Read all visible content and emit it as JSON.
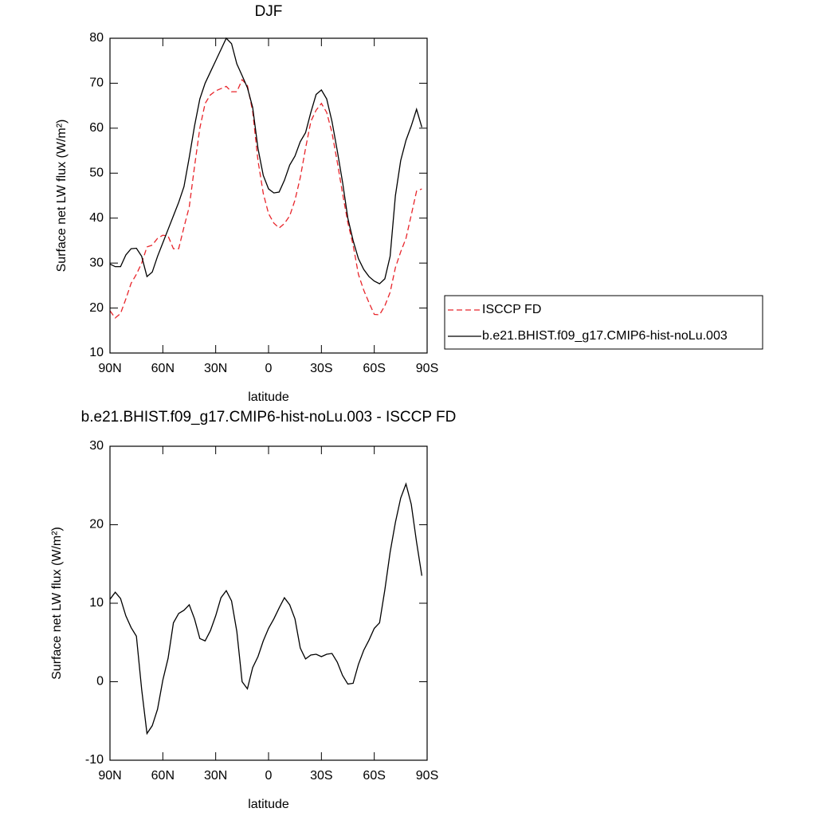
{
  "chart_data": [
    {
      "type": "line",
      "title": "DJF",
      "xlabel": "latitude",
      "ylabel": "Surface net LW flux (W/m²)",
      "x": [
        90,
        87,
        84,
        81,
        78,
        75,
        72,
        69,
        66,
        63,
        60,
        57,
        54,
        51,
        48,
        45,
        42,
        39,
        36,
        33,
        30,
        27,
        24,
        21,
        18,
        15,
        12,
        9,
        6,
        3,
        0,
        -3,
        -6,
        -9,
        -12,
        -15,
        -18,
        -21,
        -24,
        -27,
        -30,
        -33,
        -36,
        -39,
        -42,
        -45,
        -48,
        -51,
        -54,
        -57,
        -60,
        -63,
        -66,
        -69,
        -72,
        -75,
        -78,
        -81,
        -84,
        -87
      ],
      "series": [
        {
          "name": "ISCCP FD",
          "color": "#e8242a",
          "dash": "dashed",
          "values": [
            19.4,
            17.8,
            18.8,
            22,
            25.5,
            27.5,
            30,
            33.6,
            34,
            35.5,
            36.2,
            36,
            33.2,
            33.2,
            38,
            42.5,
            51.5,
            60,
            65.5,
            67.4,
            68.3,
            68.8,
            69.3,
            68.1,
            68.1,
            70.8,
            69.5,
            63.7,
            52.8,
            45.5,
            41,
            38.9,
            37.8,
            38.8,
            40.5,
            44,
            49,
            55.5,
            61.5,
            64,
            65.5,
            63.5,
            59,
            52.5,
            45.5,
            39,
            34,
            27.5,
            24,
            21.2,
            18.6,
            18.5,
            20.5,
            23.5,
            29,
            32.5,
            35.5,
            40.7,
            46,
            46.5
          ]
        },
        {
          "name": "b.e21.BHIST.f09_g17.CMIP6-hist-noLu.003",
          "color": "#000000",
          "dash": "solid",
          "values": [
            29.8,
            29.2,
            29.2,
            31.8,
            33.2,
            33.3,
            31.5,
            27,
            28,
            31.5,
            34.5,
            37.5,
            40.5,
            43.5,
            47,
            53.5,
            60.5,
            66.5,
            70,
            72.5,
            75,
            77.5,
            80,
            78.8,
            74.3,
            71.7,
            69,
            64.6,
            55.5,
            49.5,
            46.5,
            45.6,
            45.8,
            48.4,
            51.8,
            53.8,
            57,
            59,
            63.5,
            67.5,
            68.5,
            66.5,
            61.5,
            55,
            48,
            40,
            35,
            31,
            28.6,
            27,
            26,
            25.4,
            26.5,
            31.5,
            45,
            52.8,
            57.3,
            60.5,
            64.2,
            60.2
          ]
        }
      ],
      "xlim": [
        90,
        -90
      ],
      "xticks": [
        {
          "value": 90,
          "label": "90N"
        },
        {
          "value": 60,
          "label": "60N"
        },
        {
          "value": 30,
          "label": "30N"
        },
        0,
        {
          "value": -30,
          "label": "30S"
        },
        {
          "value": -60,
          "label": "60S"
        },
        {
          "value": -90,
          "label": "90S"
        }
      ],
      "ylim": [
        10,
        80
      ],
      "yticks": [
        10,
        20,
        30,
        40,
        50,
        60,
        70,
        80
      ],
      "legend": "outside-right"
    },
    {
      "type": "line",
      "title": "b.e21.BHIST.f09_g17.CMIP6-hist-noLu.003 - ISCCP FD",
      "xlabel": "latitude",
      "ylabel": "Surface net LW flux (W/m²)",
      "x": [
        90,
        87,
        84,
        81,
        78,
        75,
        72,
        69,
        66,
        63,
        60,
        57,
        54,
        51,
        48,
        45,
        42,
        39,
        36,
        33,
        30,
        27,
        24,
        21,
        18,
        15,
        12,
        9,
        6,
        3,
        0,
        -3,
        -6,
        -9,
        -12,
        -15,
        -18,
        -21,
        -24,
        -27,
        -30,
        -33,
        -36,
        -39,
        -42,
        -45,
        -48,
        -51,
        -54,
        -57,
        -60,
        -63,
        -66,
        -69,
        -72,
        -75,
        -78,
        -81,
        -84,
        -87
      ],
      "series": [
        {
          "color": "#000000",
          "dash": "solid",
          "values": [
            10.5,
            11.4,
            10.6,
            8.4,
            6.9,
            5.8,
            -1,
            -6.6,
            -5.6,
            -3.5,
            0.2,
            3,
            7.5,
            8.7,
            9.1,
            9.8,
            8,
            5.5,
            5.2,
            6.5,
            8.4,
            10.7,
            11.6,
            10.3,
            6.4,
            0,
            -0.9,
            1.8,
            3.2,
            5.2,
            6.8,
            8,
            9.4,
            10.7,
            9.8,
            8,
            4.3,
            2.9,
            3.4,
            3.5,
            3.2,
            3.5,
            3.6,
            2.5,
            0.8,
            -0.3,
            -0.2,
            2.2,
            4,
            5.3,
            6.8,
            7.5,
            11.7,
            16.5,
            20.3,
            23.4,
            25.2,
            22.6,
            17.8,
            13.5
          ]
        }
      ],
      "xlim": [
        90,
        -90
      ],
      "xticks": [
        {
          "value": 90,
          "label": "90N"
        },
        {
          "value": 60,
          "label": "60N"
        },
        {
          "value": 30,
          "label": "30N"
        },
        0,
        {
          "value": -30,
          "label": "30S"
        },
        {
          "value": -60,
          "label": "60S"
        },
        {
          "value": -90,
          "label": "90S"
        }
      ],
      "ylim": [
        -10,
        30
      ],
      "yticks": [
        -10,
        0,
        10,
        20,
        30
      ]
    }
  ]
}
